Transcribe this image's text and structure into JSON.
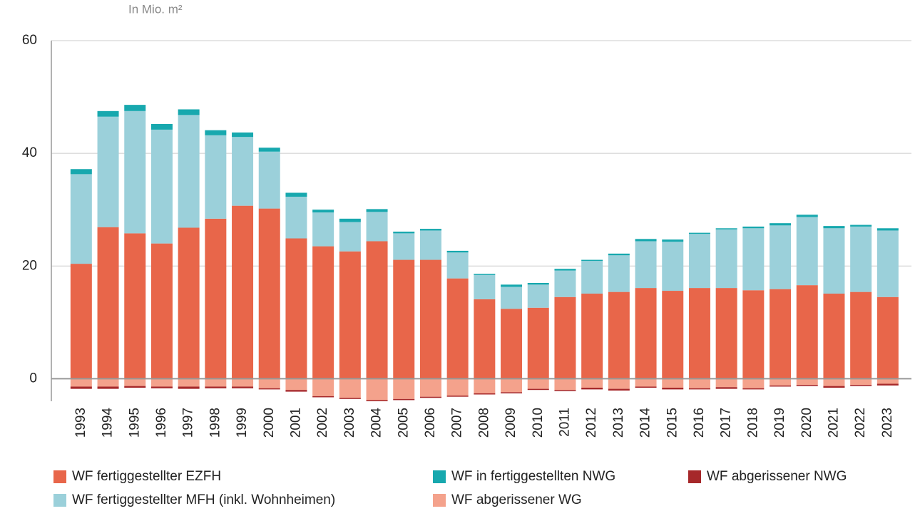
{
  "chart_data": {
    "type": "stacked_bar",
    "y_axis_label": "In Mio. m²",
    "categories": [
      "1993",
      "1994",
      "1995",
      "1996",
      "1997",
      "1998",
      "1999",
      "2000",
      "2001",
      "2002",
      "2003",
      "2004",
      "2005",
      "2006",
      "2007",
      "2008",
      "2009",
      "2010",
      "2011",
      "2012",
      "2013",
      "2014",
      "2015",
      "2016",
      "2017",
      "2018",
      "2019",
      "2020",
      "2021",
      "2022",
      "2023"
    ],
    "series": [
      {
        "name": "WF fertiggestellter EZFH",
        "color": "#e8664a",
        "values": [
          20.4,
          26.9,
          25.8,
          24.0,
          26.8,
          28.4,
          30.7,
          30.2,
          24.9,
          23.5,
          22.6,
          24.4,
          21.1,
          21.1,
          17.8,
          14.1,
          12.4,
          12.6,
          14.5,
          15.1,
          15.4,
          16.1,
          15.6,
          16.1,
          16.1,
          15.7,
          15.9,
          16.6,
          15.1,
          15.4,
          14.5
        ]
      },
      {
        "name": "WF fertiggestellter MFH (inkl. Wohnheimen)",
        "color": "#9bd0da",
        "values": [
          15.9,
          19.6,
          21.7,
          20.2,
          20.0,
          14.8,
          12.2,
          10.1,
          7.4,
          6.0,
          5.2,
          5.2,
          4.7,
          5.2,
          4.6,
          4.3,
          3.9,
          4.1,
          4.7,
          5.8,
          6.5,
          8.3,
          8.7,
          9.6,
          10.4,
          11.0,
          11.3,
          12.1,
          11.6,
          11.6,
          11.8
        ]
      },
      {
        "name": "WF in fertiggestellten NWG",
        "color": "#17a8ae",
        "values": [
          0.9,
          1.0,
          1.1,
          1.0,
          1.0,
          0.9,
          0.8,
          0.7,
          0.7,
          0.5,
          0.6,
          0.5,
          0.3,
          0.3,
          0.3,
          0.2,
          0.4,
          0.3,
          0.3,
          0.2,
          0.3,
          0.4,
          0.4,
          0.2,
          0.2,
          0.3,
          0.4,
          0.4,
          0.4,
          0.3,
          0.4
        ]
      },
      {
        "name": "WF abgerissener WG",
        "color": "#f4a28c",
        "values": [
          -1.4,
          -1.4,
          -1.3,
          -1.4,
          -1.4,
          -1.4,
          -1.4,
          -1.7,
          -2.0,
          -3.1,
          -3.4,
          -3.8,
          -3.6,
          -3.2,
          -3.0,
          -2.6,
          -2.4,
          -1.8,
          -2.0,
          -1.6,
          -1.8,
          -1.4,
          -1.6,
          -1.7,
          -1.5,
          -1.7,
          -1.2,
          -1.1,
          -1.3,
          -1.1,
          -0.9
        ]
      },
      {
        "name": "WF abgerissener NWG",
        "color": "#a6282a",
        "values": [
          -0.4,
          -0.4,
          -0.3,
          -0.3,
          -0.4,
          -0.3,
          -0.3,
          -0.2,
          -0.3,
          -0.2,
          -0.2,
          -0.2,
          -0.2,
          -0.2,
          -0.2,
          -0.2,
          -0.2,
          -0.2,
          -0.2,
          -0.3,
          -0.3,
          -0.2,
          -0.3,
          -0.2,
          -0.3,
          -0.2,
          -0.2,
          -0.2,
          -0.3,
          -0.2,
          -0.3
        ]
      }
    ],
    "ylim": [
      -4,
      60
    ],
    "yticks": [
      0,
      20,
      40,
      60
    ],
    "grid": true
  }
}
